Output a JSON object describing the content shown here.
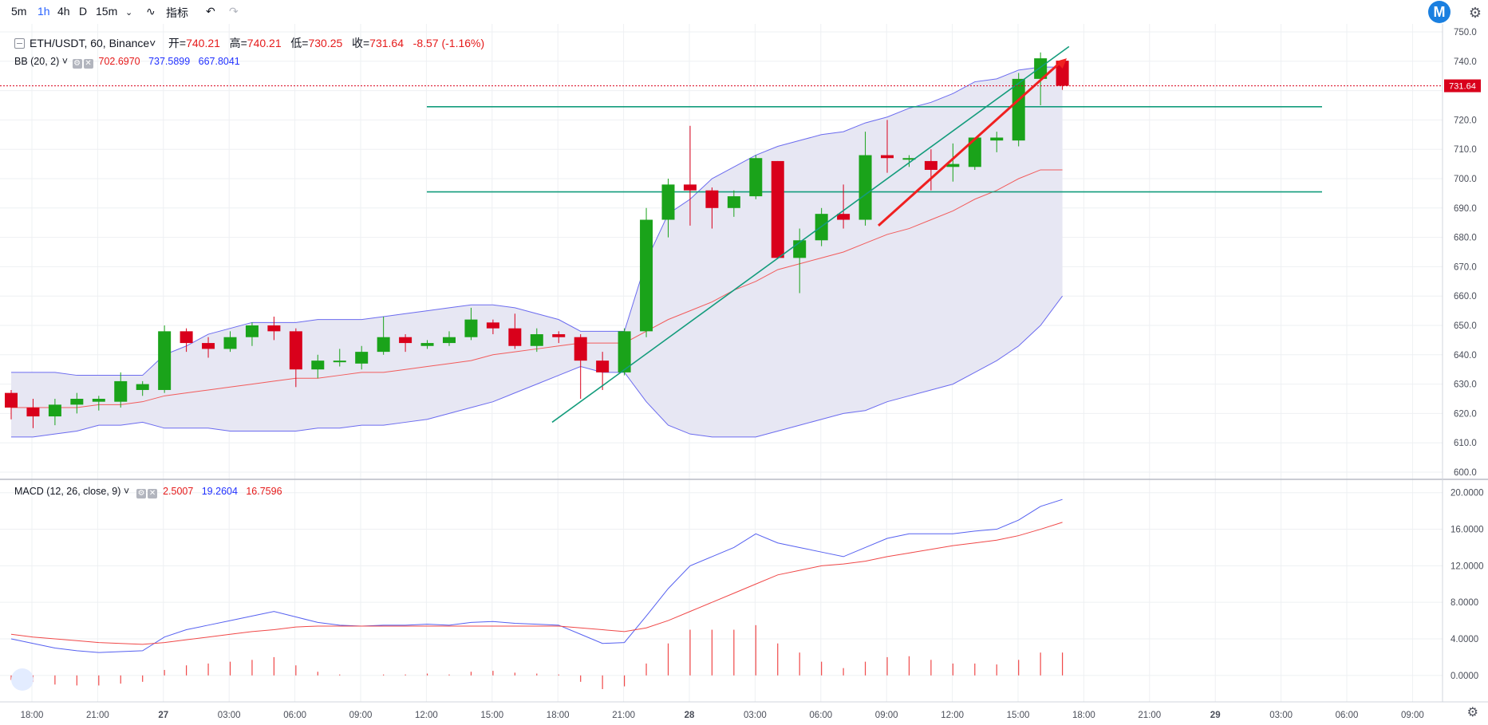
{
  "toolbar": {
    "intervals": [
      "5m",
      "1h",
      "4h",
      "D",
      "15m"
    ],
    "active_interval": "1h",
    "indicators_label": "指标"
  },
  "legend": {
    "symbol": "ETH/USDT, 60, Binance",
    "open_label": "开",
    "open": "740.21",
    "high_label": "高",
    "high": "740.21",
    "low_label": "低",
    "low": "730.25",
    "close_label": "收",
    "close": "731.64",
    "change": "-8.57 (-1.16%)",
    "bb_label": "BB (20, 2)",
    "bb_basis": "702.6970",
    "bb_upper": "737.5899",
    "bb_lower": "667.8041",
    "macd_label": "MACD (12, 26, close, 9)",
    "macd_hist": "2.5007",
    "macd_line": "19.2604",
    "macd_signal": "16.7596"
  },
  "colors": {
    "up": "#1aa31a",
    "down": "#d9001b",
    "bb_band": "#6b6bef",
    "bb_basis": "#f25b5b",
    "bb_fill": "#e6e6f2",
    "trend": "#139c7c",
    "arrow": "#f02020",
    "macd_line": "#5560f0",
    "signal": "#f04848"
  },
  "chart_data": [
    {
      "type": "candlestick",
      "title": "ETH/USDT, 60, Binance",
      "ylim": [
        600,
        750
      ],
      "y_ticks": [
        600,
        610,
        620,
        630,
        640,
        650,
        660,
        670,
        680,
        690,
        700,
        710,
        720,
        730,
        740,
        750
      ],
      "x_ticks": [
        "18:00",
        "21:00",
        "27",
        "03:00",
        "06:00",
        "09:00",
        "12:00",
        "15:00",
        "18:00",
        "21:00",
        "28",
        "03:00",
        "06:00",
        "09:00",
        "12:00",
        "15:00",
        "18:00",
        "21:00",
        "29",
        "03:00",
        "06:00",
        "09:00"
      ],
      "last_price": "731.64",
      "candles": [
        [
          627,
          622,
          628,
          618
        ],
        [
          622,
          619,
          625,
          615
        ],
        [
          619,
          623,
          625,
          616
        ],
        [
          623,
          625,
          627,
          620
        ],
        [
          624,
          625,
          626,
          621
        ],
        [
          624,
          631,
          634,
          622
        ],
        [
          628,
          630,
          631,
          626
        ],
        [
          628,
          648,
          650,
          627
        ],
        [
          648,
          644,
          649,
          641
        ],
        [
          644,
          642,
          646,
          639
        ],
        [
          642,
          646,
          648,
          641
        ],
        [
          646,
          650,
          651,
          643
        ],
        [
          650,
          648,
          653,
          645
        ],
        [
          648,
          635,
          649,
          629
        ],
        [
          635,
          638,
          640,
          632
        ],
        [
          638,
          638,
          642,
          636
        ],
        [
          637,
          641,
          643,
          635
        ],
        [
          641,
          646,
          653,
          640
        ],
        [
          646,
          644,
          647,
          641
        ],
        [
          643,
          644,
          645,
          642
        ],
        [
          644,
          646,
          648,
          643
        ],
        [
          646,
          652,
          656,
          645
        ],
        [
          651,
          649,
          652,
          647
        ],
        [
          649,
          643,
          654,
          642
        ],
        [
          643,
          647,
          649,
          641
        ],
        [
          647,
          646,
          648,
          644
        ],
        [
          646,
          638,
          647,
          625
        ],
        [
          638,
          634,
          641,
          628
        ],
        [
          634,
          648,
          649,
          633
        ],
        [
          648,
          686,
          690,
          646
        ],
        [
          686,
          698,
          700,
          680
        ],
        [
          698,
          696,
          718,
          684
        ],
        [
          696,
          690,
          697,
          683
        ],
        [
          690,
          694,
          696,
          687
        ],
        [
          694,
          707,
          708,
          693
        ],
        [
          706,
          673,
          706,
          673
        ],
        [
          673,
          679,
          683,
          661
        ],
        [
          679,
          688,
          690,
          677
        ],
        [
          688,
          686,
          698,
          683
        ],
        [
          686,
          708,
          716,
          684
        ],
        [
          708,
          707,
          720,
          702
        ],
        [
          707,
          707,
          708,
          704
        ],
        [
          706,
          703,
          710,
          696
        ],
        [
          704,
          705,
          712,
          699
        ],
        [
          704,
          714,
          714,
          703
        ],
        [
          713,
          714,
          716,
          709
        ],
        [
          713,
          734,
          736,
          711
        ],
        [
          734,
          741,
          743,
          725
        ],
        [
          740.21,
          731.64,
          740.21,
          730.25
        ]
      ],
      "bb_upper": [
        634,
        634,
        634,
        633,
        633,
        633,
        633,
        640,
        643,
        647,
        649,
        651,
        651,
        651,
        652,
        652,
        652,
        653,
        654,
        655,
        656,
        657,
        657,
        656,
        654,
        652,
        648,
        648,
        648,
        672,
        688,
        693,
        700,
        704,
        708,
        711,
        713,
        715,
        716,
        719,
        721,
        724,
        726,
        729,
        733,
        734,
        737,
        738,
        738
      ],
      "bb_basis": [
        622,
        622,
        622,
        622,
        623,
        623,
        624,
        626,
        627,
        628,
        629,
        630,
        631,
        632,
        632,
        633,
        634,
        634,
        635,
        636,
        637,
        638,
        640,
        641,
        642,
        643,
        644,
        644,
        644,
        648,
        652,
        655,
        658,
        662,
        665,
        669,
        671,
        673,
        675,
        678,
        681,
        683,
        686,
        689,
        693,
        696,
        700,
        703,
        703
      ],
      "bb_lower": [
        612,
        612,
        613,
        614,
        616,
        616,
        617,
        615,
        615,
        615,
        614,
        614,
        614,
        614,
        615,
        615,
        616,
        616,
        617,
        618,
        620,
        622,
        624,
        627,
        630,
        633,
        636,
        634,
        634,
        624,
        616,
        613,
        612,
        612,
        612,
        614,
        616,
        618,
        620,
        621,
        624,
        626,
        628,
        630,
        634,
        638,
        643,
        650,
        660
      ],
      "hlines": [
        724.5,
        695.5
      ],
      "trendline": [
        [
          24.7,
          617
        ],
        [
          48.3,
          745
        ]
      ],
      "arrow": [
        [
          39.6,
          684
        ],
        [
          48.2,
          741
        ]
      ]
    },
    {
      "type": "macd",
      "title": "MACD (12, 26, close, 9)",
      "ylim": [
        -1.5,
        20.5
      ],
      "y_ticks": [
        "0.0000",
        "4.0000",
        "8.0000",
        "12.0000",
        "16.0000",
        "20.0000"
      ],
      "macd_line": [
        4,
        3.5,
        3,
        2.7,
        2.5,
        2.6,
        2.7,
        4.2,
        5,
        5.5,
        6,
        6.5,
        7,
        6.4,
        5.8,
        5.5,
        5.4,
        5.5,
        5.5,
        5.6,
        5.5,
        5.8,
        5.9,
        5.7,
        5.6,
        5.5,
        4.5,
        3.5,
        3.6,
        6.5,
        9.5,
        12,
        13,
        14,
        15.5,
        14.5,
        14,
        13.5,
        13,
        14,
        15,
        15.5,
        15.5,
        15.5,
        15.8,
        16,
        17,
        18.5,
        19.26
      ],
      "signal": [
        4.5,
        4.2,
        4,
        3.8,
        3.6,
        3.5,
        3.4,
        3.6,
        3.9,
        4.2,
        4.5,
        4.8,
        5,
        5.3,
        5.4,
        5.4,
        5.4,
        5.4,
        5.4,
        5.4,
        5.4,
        5.4,
        5.4,
        5.4,
        5.4,
        5.4,
        5.2,
        5,
        4.8,
        5.2,
        6,
        7,
        8,
        9,
        10,
        11,
        11.5,
        12,
        12.2,
        12.5,
        13,
        13.4,
        13.8,
        14.2,
        14.5,
        14.8,
        15.3,
        16,
        16.76
      ],
      "histogram": [
        -0.5,
        -0.7,
        -1,
        -1.1,
        -1.1,
        -0.9,
        -0.7,
        0.6,
        1.1,
        1.3,
        1.5,
        1.7,
        2,
        1.1,
        0.4,
        0.1,
        0,
        0.1,
        0.1,
        0.2,
        0.1,
        0.4,
        0.5,
        0.3,
        0.2,
        0.1,
        -0.7,
        -1.5,
        -1.2,
        1.3,
        3.5,
        5,
        5,
        5,
        5.5,
        3.5,
        2.5,
        1.5,
        0.8,
        1.5,
        2,
        2.1,
        1.7,
        1.3,
        1.3,
        1.2,
        1.7,
        2.5,
        2.5
      ]
    }
  ]
}
